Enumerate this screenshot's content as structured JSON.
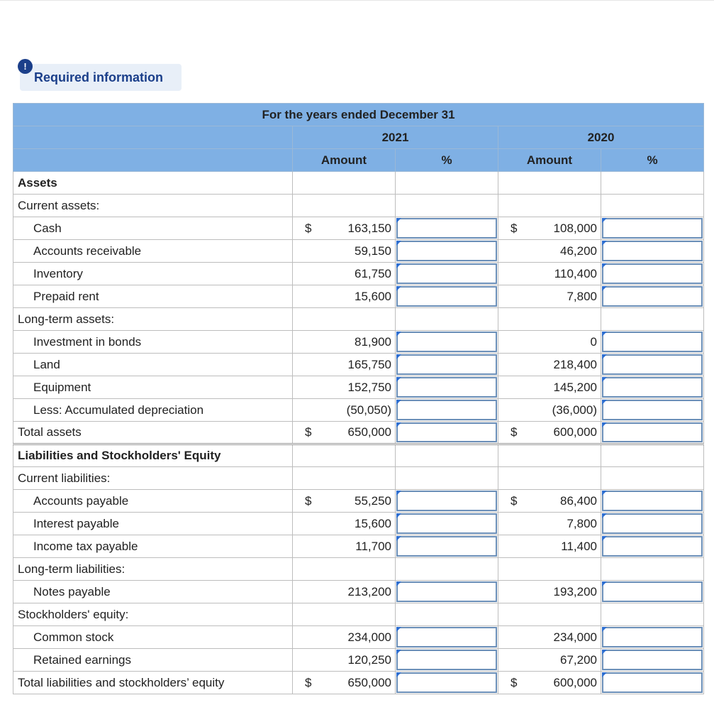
{
  "badge": "!",
  "header": {
    "title": "Required information"
  },
  "table": {
    "caption": "For the years ended December 31",
    "years": [
      "2021",
      "2020"
    ],
    "columns": [
      "Amount",
      "%"
    ],
    "rows": [
      {
        "label": "Assets",
        "bold": true
      },
      {
        "label": "Current assets:"
      },
      {
        "label": "Cash",
        "indent": true,
        "currency": "$",
        "values": [
          "163,150",
          "108,000"
        ]
      },
      {
        "label": "Accounts receivable",
        "indent": true,
        "values": [
          "59,150",
          "46,200"
        ]
      },
      {
        "label": "Inventory",
        "indent": true,
        "values": [
          "61,750",
          "110,400"
        ]
      },
      {
        "label": "Prepaid rent",
        "indent": true,
        "values": [
          "15,600",
          "7,800"
        ]
      },
      {
        "label": "Long-term assets:"
      },
      {
        "label": "Investment in bonds",
        "indent": true,
        "values": [
          "81,900",
          "0"
        ]
      },
      {
        "label": "Land",
        "indent": true,
        "values": [
          "165,750",
          "218,400"
        ]
      },
      {
        "label": "Equipment",
        "indent": true,
        "values": [
          "152,750",
          "145,200"
        ]
      },
      {
        "label": "Less: Accumulated depreciation",
        "indent": true,
        "values": [
          "(50,050)",
          "(36,000)"
        ]
      },
      {
        "label": "Total assets",
        "currency": "$",
        "values": [
          "650,000",
          "600,000"
        ]
      },
      {
        "label": "Liabilities and Stockholders' Equity",
        "bold": true
      },
      {
        "label": "Current liabilities:"
      },
      {
        "label": "Accounts payable",
        "indent": true,
        "currency": "$",
        "values": [
          "55,250",
          "86,400"
        ]
      },
      {
        "label": "Interest payable",
        "indent": true,
        "values": [
          "15,600",
          "7,800"
        ]
      },
      {
        "label": "Income tax payable",
        "indent": true,
        "values": [
          "11,700",
          "11,400"
        ]
      },
      {
        "label": "Long-term liabilities:"
      },
      {
        "label": "Notes payable",
        "indent": true,
        "values": [
          "213,200",
          "193,200"
        ]
      },
      {
        "label": "Stockholders' equity:"
      },
      {
        "label": "Common stock",
        "indent": true,
        "values": [
          "234,000",
          "234,000"
        ]
      },
      {
        "label": "Retained earnings",
        "indent": true,
        "values": [
          "120,250",
          "67,200"
        ]
      },
      {
        "label": "Total liabilities and stockholders’ equity",
        "currency": "$",
        "values": [
          "650,000",
          "600,000"
        ]
      }
    ]
  }
}
